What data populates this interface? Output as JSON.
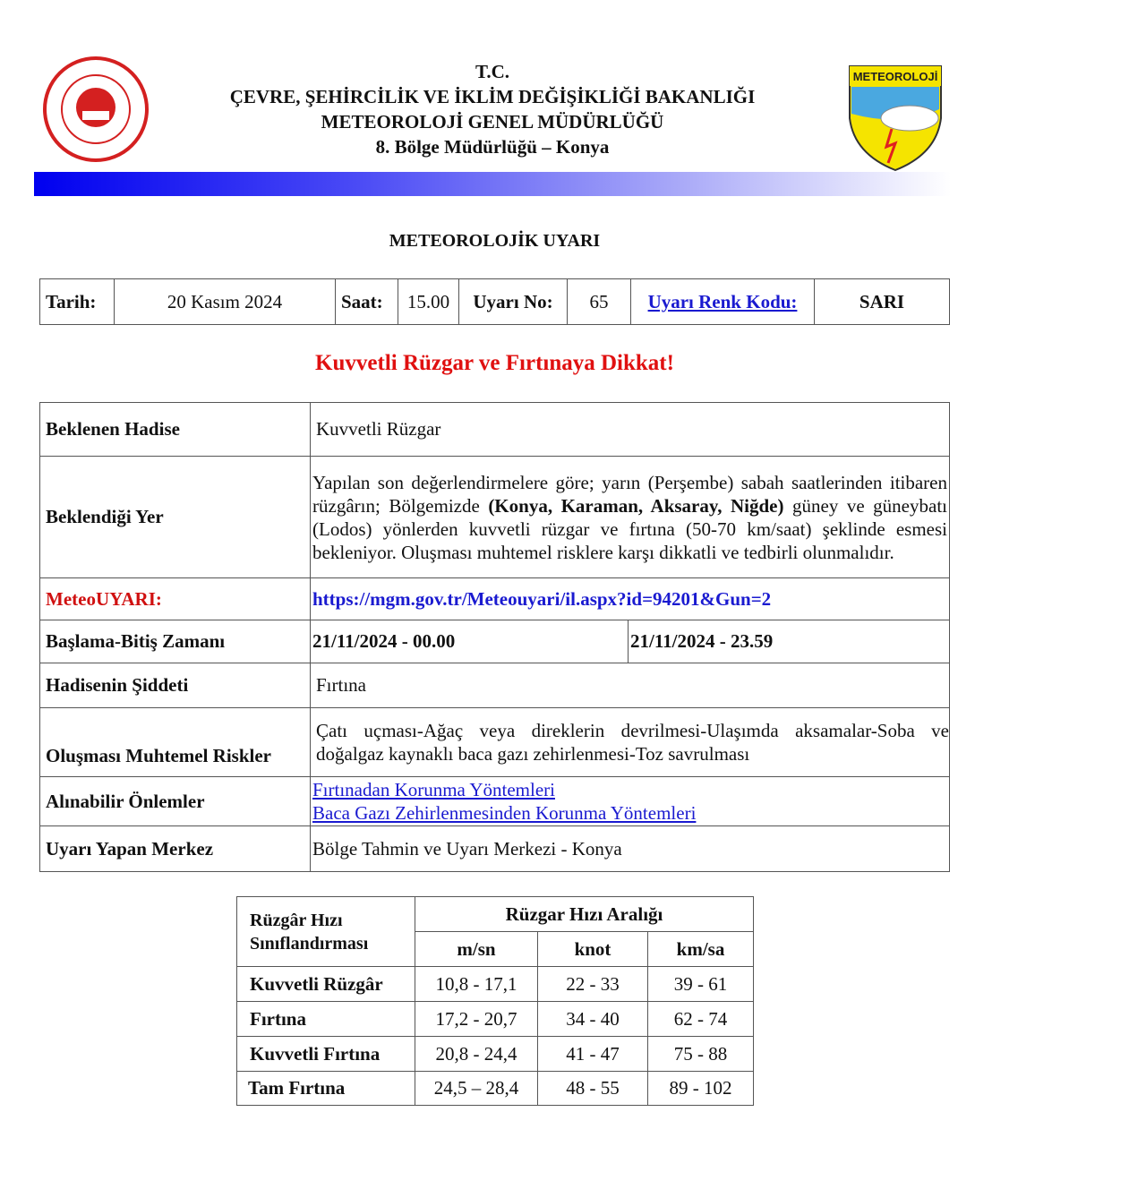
{
  "header": {
    "line1": "T.C.",
    "line2": "ÇEVRE, ŞEHİRCİLİK VE İKLİM DEĞİŞİKLİĞİ BAKANLIĞI",
    "line3": "METEOROLOJİ GENEL MÜDÜRLÜĞÜ",
    "line4": "8. Bölge Müdürlüğü – Konya",
    "logo_right_text": "METEOROLOJİ"
  },
  "title": "METEOROLOJİK UYARI",
  "info": {
    "date_label": "Tarih:",
    "date": "20 Kasım 2024",
    "time_label": "Saat:",
    "time": "15.00",
    "no_label": "Uyarı No:",
    "no": "65",
    "color_label": "Uyarı Renk Kodu:",
    "color": "SARI"
  },
  "warning_title": "Kuvvetli Rüzgar ve Fırtınaya Dikkat!",
  "details": {
    "event_label": "Beklenen Hadise",
    "event": "Kuvvetli Rüzgar",
    "place_label": "Beklendiği Yer",
    "place_pre": "Yapılan son değerlendirmelere göre; yarın (Perşembe) sabah saatlerinden itibaren rüzgârın; Bölgemizde ",
    "place_bold": "(Konya, Karaman, Aksaray, Niğde)",
    "place_post": " güney ve güneybatı (Lodos) yönlerden kuvvetli rüzgar ve fırtına (50-70 km/saat) şeklinde esmesi bekleniyor. Oluşması muhtemel risklere karşı dikkatli ve tedbirli olunmalıdır.",
    "meteo_label": "MeteoUYARI:",
    "meteo_link": "https://mgm.gov.tr/Meteouyari/il.aspx?id=94201&Gun=2",
    "time_label": "Başlama-Bitiş Zamanı",
    "start": "21/11/2024 - 00.00",
    "end": "21/11/2024 - 23.59",
    "severity_label": "Hadisenin Şiddeti",
    "severity": "Fırtına",
    "risks_label": "Oluşması Muhtemel Riskler",
    "risks": "Çatı uçması-Ağaç veya direklerin devrilmesi-Ulaşımda aksamalar-Soba ve doğalgaz kaynaklı baca gazı zehirlenmesi-Toz savrulması",
    "measures_label": "Alınabilir Önlemler",
    "measure1": "Fırtınadan Korunma Yöntemleri",
    "measure2": "Baca Gazı Zehirlenmesinden Korunma Yöntemleri",
    "center_label": "Uyarı Yapan Merkez",
    "center": "Bölge Tahmin ve Uyarı Merkezi - Konya"
  },
  "wind": {
    "class_header": "Rüzgâr Hızı Sınıflandırması",
    "range_header": "Rüzgar Hızı Aralığı",
    "units": [
      "m/sn",
      "knot",
      "km/sa"
    ],
    "rows": [
      {
        "name": "Kuvvetli Rüzgâr",
        "v": [
          "10,8 - 17,1",
          "22 - 33",
          "39 - 61"
        ]
      },
      {
        "name": "Fırtına",
        "v": [
          "17,2 - 20,7",
          "34 - 40",
          "62 - 74"
        ]
      },
      {
        "name": "Kuvvetli Fırtına",
        "v": [
          "20,8 - 24,4",
          "41 - 47",
          "75 - 88"
        ]
      },
      {
        "name": "Tam Fırtına",
        "v": [
          "24,5 – 28,4",
          "48 - 55",
          "89 - 102"
        ]
      }
    ]
  }
}
